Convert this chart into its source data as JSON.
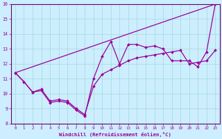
{
  "xlabel": "Windchill (Refroidissement éolien,°C)",
  "bg_color": "#cceeff",
  "grid_color": "#aadddd",
  "line_color": "#990099",
  "spine_color": "#660066",
  "xlim": [
    -0.5,
    23.5
  ],
  "ylim": [
    8,
    16
  ],
  "yticks": [
    8,
    9,
    10,
    11,
    12,
    13,
    14,
    15,
    16
  ],
  "xticks": [
    0,
    1,
    2,
    3,
    4,
    5,
    6,
    7,
    8,
    9,
    10,
    11,
    12,
    13,
    14,
    15,
    16,
    17,
    18,
    19,
    20,
    21,
    22,
    23
  ],
  "series_jagged_x": [
    0,
    1,
    2,
    3,
    4,
    5,
    6,
    7,
    8,
    9,
    10,
    11,
    12,
    13,
    14,
    15,
    16,
    17,
    18,
    19,
    20,
    21,
    22,
    23
  ],
  "series_jagged_y": [
    11.4,
    10.8,
    10.1,
    10.2,
    9.4,
    9.5,
    9.4,
    8.9,
    8.5,
    11.0,
    12.5,
    13.5,
    12.0,
    13.3,
    13.3,
    13.1,
    13.2,
    13.0,
    12.2,
    12.2,
    12.2,
    11.8,
    12.8,
    16.0
  ],
  "series_smooth_x": [
    0,
    1,
    2,
    3,
    4,
    5,
    6,
    7,
    8,
    9,
    10,
    11,
    12,
    13,
    14,
    15,
    16,
    17,
    18,
    19,
    20,
    21,
    22,
    23
  ],
  "series_smooth_y": [
    11.4,
    10.8,
    10.1,
    10.3,
    9.5,
    9.6,
    9.5,
    9.0,
    8.6,
    10.5,
    11.3,
    11.6,
    11.9,
    12.2,
    12.4,
    12.5,
    12.6,
    12.7,
    12.8,
    12.9,
    12.0,
    12.1,
    12.2,
    12.9
  ],
  "series_line_x": [
    0,
    23
  ],
  "series_line_y": [
    11.4,
    16.0
  ]
}
